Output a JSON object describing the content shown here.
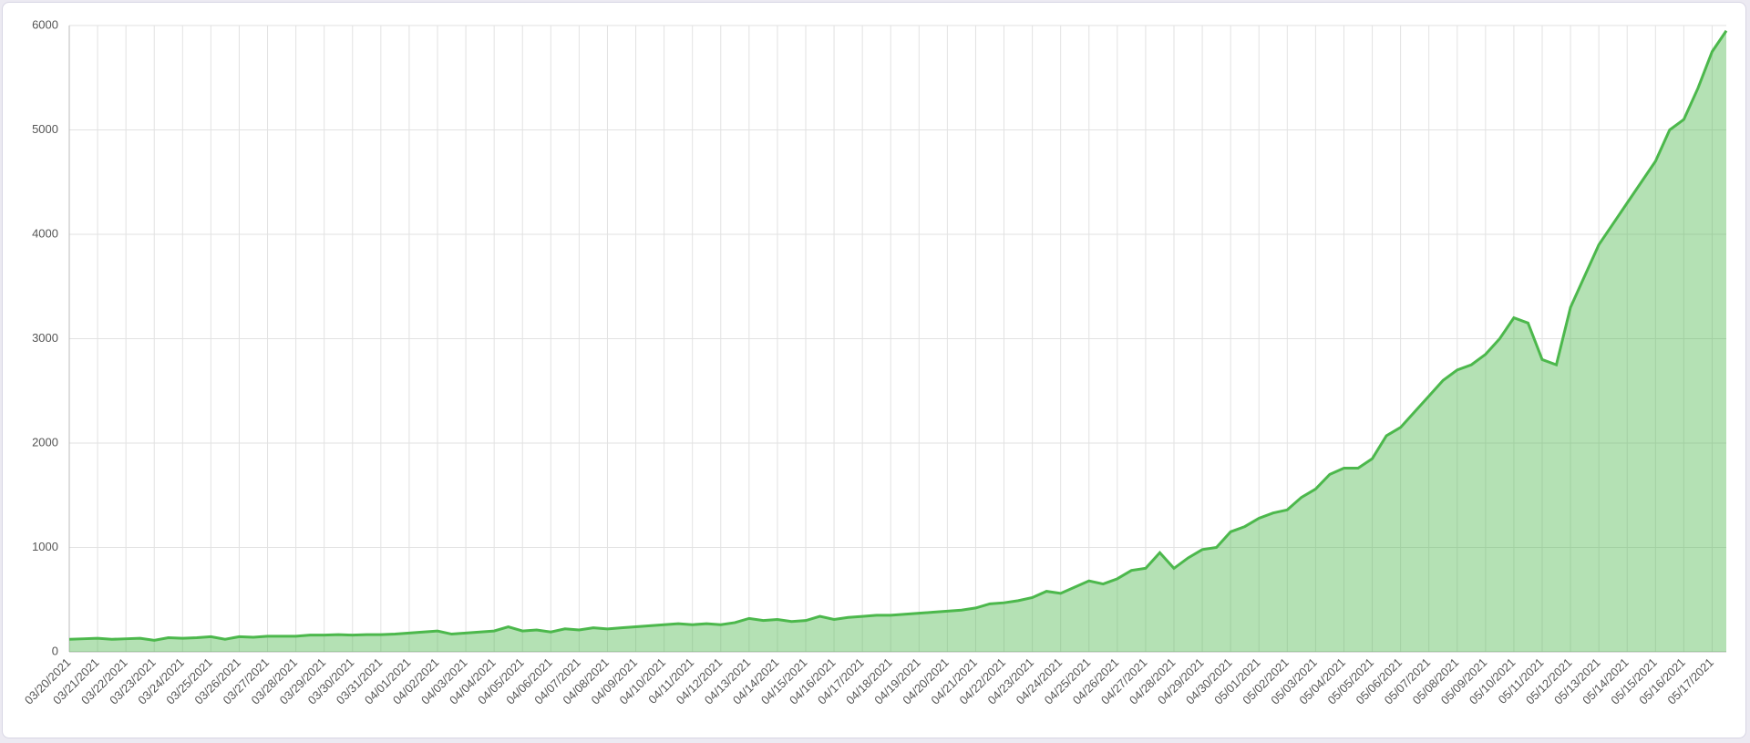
{
  "chart_data": {
    "type": "area",
    "categories": [
      "03/20/2021",
      null,
      "03/21/2021",
      null,
      "03/22/2021",
      null,
      "03/23/2021",
      null,
      "03/24/2021",
      null,
      "03/25/2021",
      null,
      "03/26/2021",
      null,
      "03/27/2021",
      null,
      "03/28/2021",
      null,
      "03/29/2021",
      null,
      "03/30/2021",
      null,
      "03/31/2021",
      null,
      "04/01/2021",
      null,
      "04/02/2021",
      null,
      "04/03/2021",
      null,
      "04/04/2021",
      null,
      "04/05/2021",
      null,
      "04/06/2021",
      null,
      "04/07/2021",
      null,
      "04/08/2021",
      null,
      "04/09/2021",
      null,
      "04/10/2021",
      null,
      "04/11/2021",
      null,
      "04/12/2021",
      null,
      "04/13/2021",
      null,
      "04/14/2021",
      null,
      "04/15/2021",
      null,
      "04/16/2021",
      null,
      "04/17/2021",
      null,
      "04/18/2021",
      null,
      "04/19/2021",
      null,
      "04/20/2021",
      null,
      "04/21/2021",
      null,
      "04/22/2021",
      null,
      "04/23/2021",
      null,
      "04/24/2021",
      null,
      "04/25/2021",
      null,
      "04/26/2021",
      null,
      "04/27/2021",
      null,
      "04/28/2021",
      null,
      "04/29/2021",
      null,
      "04/30/2021",
      null,
      "05/01/2021",
      null,
      "05/02/2021",
      null,
      "05/03/2021",
      null,
      "05/04/2021",
      null,
      "05/05/2021",
      null,
      "05/06/2021",
      null,
      "05/07/2021",
      null,
      "05/08/2021",
      null,
      "05/09/2021",
      null,
      "05/10/2021",
      null,
      "05/11/2021",
      null,
      "05/12/2021",
      null,
      "05/13/2021",
      null,
      "05/14/2021",
      null,
      "05/15/2021",
      null,
      "05/16/2021",
      null,
      "05/17/2021",
      null
    ],
    "series": [
      {
        "color": "#4cb84c",
        "values": [
          120,
          125,
          130,
          120,
          125,
          130,
          110,
          135,
          130,
          135,
          145,
          120,
          145,
          140,
          150,
          150,
          150,
          160,
          160,
          165,
          160,
          165,
          165,
          170,
          180,
          190,
          200,
          170,
          180,
          190,
          200,
          240,
          200,
          210,
          190,
          220,
          210,
          230,
          220,
          230,
          240,
          250,
          260,
          270,
          260,
          270,
          260,
          280,
          320,
          300,
          310,
          290,
          300,
          340,
          310,
          330,
          340,
          350,
          350,
          360,
          370,
          380,
          390,
          400,
          420,
          460,
          470,
          490,
          520,
          580,
          560,
          620,
          680,
          650,
          700,
          780,
          800,
          950,
          800,
          900,
          980,
          1000,
          1150,
          1200,
          1280,
          1330,
          1360,
          1480,
          1560,
          1700,
          1760,
          1760,
          1850,
          2070,
          2150,
          2300,
          2450,
          2600,
          2700,
          2750,
          2850,
          3000,
          3200,
          3150,
          2800,
          2750,
          3300,
          3600,
          3900,
          4100,
          4300,
          4500,
          4700,
          5000,
          5100,
          5400,
          5750,
          5950
        ]
      }
    ],
    "ylim": [
      0,
      6000
    ],
    "yticks": [
      0,
      1000,
      2000,
      3000,
      4000,
      5000,
      6000
    ],
    "grid": true
  }
}
